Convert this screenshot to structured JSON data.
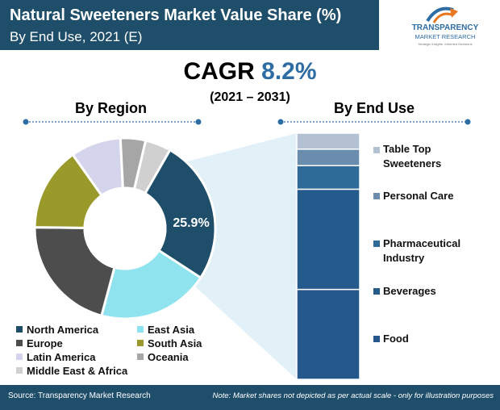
{
  "header": {
    "title": "Natural Sweeteners Market Value Share (%)",
    "subtitle": "By End Use, 2021 (E)"
  },
  "logo": {
    "name": "TRANSPARENCY",
    "name2": "MARKET RESEARCH",
    "tagline": "Strategic Insights. Informed Decisions",
    "colors": {
      "accent": "#e87722",
      "primary": "#2e6ca4"
    }
  },
  "cagr": {
    "label": "CAGR",
    "value": "8.2%",
    "years": "(2021 – 2031)"
  },
  "sections": {
    "region_title": "By Region",
    "end_use_title": "By End Use"
  },
  "footer": {
    "source": "Source: Transparency Market Research",
    "note": "Note: Market shares not depicted as per actual scale - only for illustration purposes"
  },
  "chart_data": [
    {
      "type": "pie",
      "title": "By Region",
      "donut": true,
      "highlight_label": "25.9%",
      "slices": [
        {
          "label": "North America",
          "value": 25.9,
          "color": "#1f4e6b"
        },
        {
          "label": "East Asia",
          "value": 20.0,
          "color": "#8fe3ee"
        },
        {
          "label": "Europe",
          "value": 21.0,
          "color": "#4d4d4d"
        },
        {
          "label": "South Asia",
          "value": 15.0,
          "color": "#9a9a2a"
        },
        {
          "label": "Latin America",
          "value": 9.0,
          "color": "#d4d4ec"
        },
        {
          "label": "Oceania",
          "value": 4.5,
          "color": "#a6a6a6"
        },
        {
          "label": "Middle East & Africa",
          "value": 4.6,
          "color": "#d0d0d0"
        }
      ]
    },
    {
      "type": "bar",
      "stacked": true,
      "title": "By End Use",
      "segments": [
        {
          "label": "Table Top Sweeteners",
          "value": 6.5,
          "color": "#b4c1d2"
        },
        {
          "label": "Personal Care",
          "value": 6.7,
          "color": "#6a8cad"
        },
        {
          "label": "Pharmaceutical Industry",
          "value": 9.6,
          "color": "#2f6b99"
        },
        {
          "label": "Beverages",
          "value": 40.7,
          "color": "#255a8c"
        },
        {
          "label": "Food",
          "value": 36.5,
          "color": "#24578a"
        }
      ],
      "ylim": [
        0,
        100
      ]
    }
  ]
}
